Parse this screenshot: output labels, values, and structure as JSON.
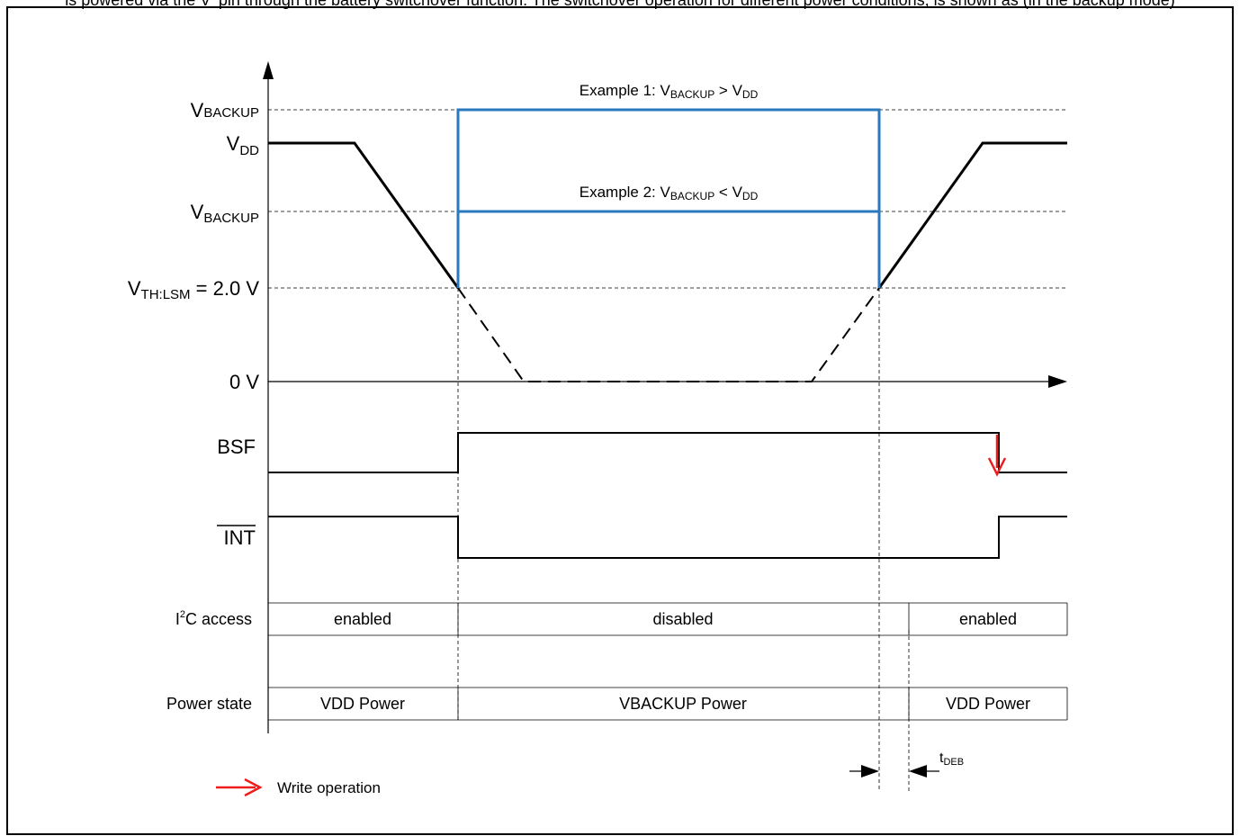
{
  "header_fragment": "is powered via the V  pin through the battery switchover function. The switchover operation for different power conditions, is shown as (in the backup mode)",
  "levels": {
    "vbackup_high": {
      "base": "V",
      "sub": "BACKUP"
    },
    "vdd": {
      "base": "V",
      "sub": "DD"
    },
    "vbackup_low": {
      "base": "V",
      "sub": "BACKUP"
    },
    "vth": {
      "base": "V",
      "sub": "TH:LSM",
      "suffix": " = 2.0 V"
    },
    "zero": "0 V"
  },
  "examples": {
    "ex1": {
      "prefix": "Example 1: V",
      "sub1": "BACKUP",
      "mid": " > V",
      "sub2": "DD"
    },
    "ex2": {
      "prefix": "Example 2: V",
      "sub1": "BACKUP",
      "mid": " < V",
      "sub2": "DD"
    }
  },
  "signals": {
    "bsf": "BSF",
    "int": "INT"
  },
  "i2c": {
    "label_base": "I",
    "label_sup": "2",
    "label_rest": "C access",
    "segments": [
      "enabled",
      "disabled",
      "enabled"
    ]
  },
  "power": {
    "label": "Power state",
    "segments": [
      "VDD Power",
      "VBACKUP Power",
      "VDD Power"
    ]
  },
  "tdeb": {
    "base": "t",
    "sub": "DEB"
  },
  "legend": {
    "label": "Write operation"
  },
  "colors": {
    "blue": "#2a78be",
    "red": "#ee1c1c",
    "black": "#000000"
  }
}
